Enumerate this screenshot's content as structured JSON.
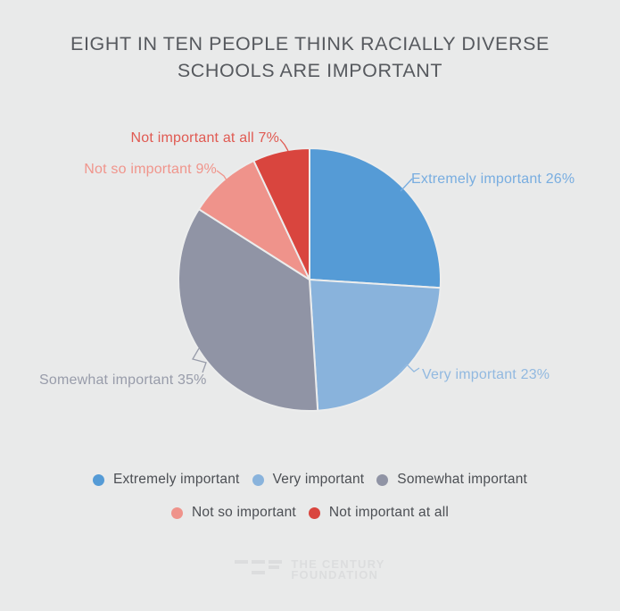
{
  "header": {
    "title_line1": "EIGHT IN TEN PEOPLE THINK RACIALLY DIVERSE",
    "title_line2": "SCHOOLS ARE IMPORTANT"
  },
  "chart_data": {
    "type": "pie",
    "title": "EIGHT IN TEN PEOPLE THINK RACIALLY DIVERSE SCHOOLS ARE IMPORTANT",
    "unit": "%",
    "start_angle_deg": 0,
    "direction": "clockwise",
    "legend_position": "bottom",
    "background": "#e9eaea",
    "slices": [
      {
        "label": "Extremely important",
        "value": 26,
        "color": "#559bd6",
        "label_color": "#78ade0"
      },
      {
        "label": "Very important",
        "value": 23,
        "color": "#89b3dc",
        "label_color": "#92b9e0"
      },
      {
        "label": "Somewhat important",
        "value": 35,
        "color": "#9094a5",
        "label_color": "#989caa"
      },
      {
        "label": "Not so important",
        "value": 9,
        "color": "#ef938b",
        "label_color": "#f0958c"
      },
      {
        "label": "Not important at all",
        "value": 7,
        "color": "#d9453e",
        "label_color": "#e05a52"
      }
    ]
  },
  "footer": {
    "logo_text_line1": "THE CENTURY",
    "logo_text_line2": "FOUNDATION"
  }
}
